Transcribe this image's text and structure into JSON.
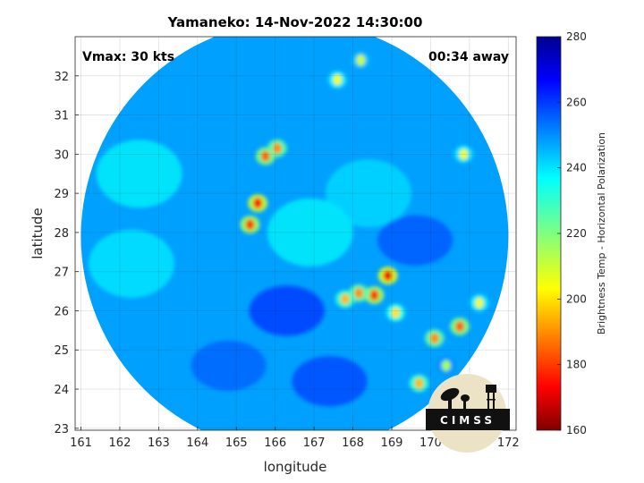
{
  "title": "Yamaneko: 14-Nov-2022 14:30:00",
  "annotations": {
    "vmax": "Vmax: 30 kts",
    "time_away": "00:34 away"
  },
  "axes": {
    "xlabel": "longitude",
    "ylabel": "latitude",
    "xlim": [
      160.85,
      172.2
    ],
    "ylim": [
      22.95,
      33.0
    ],
    "xticks": [
      "161",
      "162",
      "163",
      "164",
      "165",
      "166",
      "167",
      "168",
      "169",
      "170",
      "171",
      "172"
    ],
    "yticks": [
      "23",
      "24",
      "25",
      "26",
      "27",
      "28",
      "29",
      "30",
      "31",
      "32"
    ],
    "grid": true
  },
  "colorbar": {
    "label": "Brightness Temp - Horizontal Polarization",
    "range": [
      160,
      280
    ],
    "ticks": [
      "160",
      "180",
      "200",
      "220",
      "240",
      "260",
      "280"
    ],
    "colormap": "jet"
  },
  "logo": {
    "text": "CIMSS"
  },
  "chart_data": {
    "type": "heatmap",
    "title": "Yamaneko: 14-Nov-2022 14:30:00",
    "xlabel": "longitude",
    "ylabel": "latitude",
    "xlim": [
      160.85,
      172.2
    ],
    "ylim": [
      22.95,
      33.0
    ],
    "zlabel": "Brightness Temp - Horizontal Polarization",
    "zlim": [
      160,
      280
    ],
    "swath": {
      "center": [
        166.5,
        27.9
      ],
      "radius_deg": 5.5
    },
    "background_tb": 248,
    "features": [
      {
        "lon": 165.55,
        "lat": 28.75,
        "tb": 175
      },
      {
        "lon": 165.35,
        "lat": 28.2,
        "tb": 180
      },
      {
        "lon": 165.75,
        "lat": 29.95,
        "tb": 185
      },
      {
        "lon": 166.05,
        "lat": 30.15,
        "tb": 190
      },
      {
        "lon": 168.9,
        "lat": 26.9,
        "tb": 172
      },
      {
        "lon": 168.55,
        "lat": 26.4,
        "tb": 180
      },
      {
        "lon": 168.15,
        "lat": 26.45,
        "tb": 190
      },
      {
        "lon": 167.8,
        "lat": 26.3,
        "tb": 195
      },
      {
        "lon": 169.1,
        "lat": 25.95,
        "tb": 200
      },
      {
        "lon": 170.75,
        "lat": 25.6,
        "tb": 185
      },
      {
        "lon": 170.1,
        "lat": 25.3,
        "tb": 190
      },
      {
        "lon": 171.25,
        "lat": 26.2,
        "tb": 205
      },
      {
        "lon": 167.6,
        "lat": 31.9,
        "tb": 205
      },
      {
        "lon": 168.2,
        "lat": 32.4,
        "tb": 210
      },
      {
        "lon": 170.85,
        "lat": 30.0,
        "tb": 205
      },
      {
        "lon": 169.7,
        "lat": 24.15,
        "tb": 195
      },
      {
        "lon": 170.4,
        "lat": 24.6,
        "tb": 215
      }
    ],
    "cool_regions": [
      {
        "lon": 162.5,
        "lat": 29.5,
        "tb": 236
      },
      {
        "lon": 162.3,
        "lat": 27.2,
        "tb": 238
      },
      {
        "lon": 166.9,
        "lat": 28.0,
        "tb": 236
      },
      {
        "lon": 168.4,
        "lat": 29.0,
        "tb": 240
      }
    ],
    "warm_regions": [
      {
        "lon": 166.3,
        "lat": 26.0,
        "tb": 265
      },
      {
        "lon": 167.4,
        "lat": 24.2,
        "tb": 262
      },
      {
        "lon": 169.6,
        "lat": 27.8,
        "tb": 260
      },
      {
        "lon": 164.8,
        "lat": 24.6,
        "tb": 258
      }
    ]
  }
}
